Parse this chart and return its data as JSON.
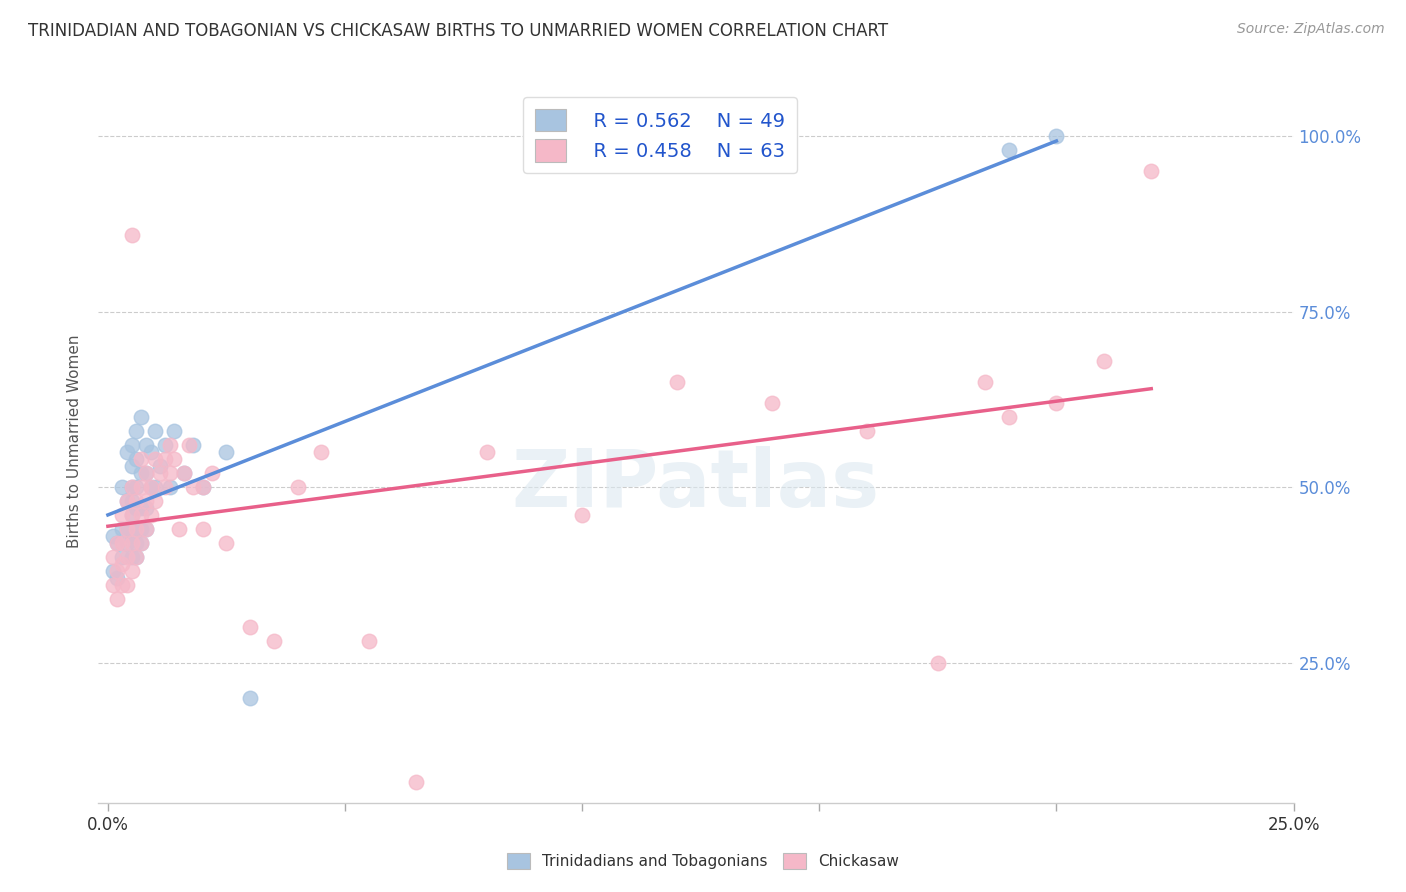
{
  "title": "TRINIDADIAN AND TOBAGONIAN VS CHICKASAW BIRTHS TO UNMARRIED WOMEN CORRELATION CHART",
  "source": "Source: ZipAtlas.com",
  "ylabel": "Births to Unmarried Women",
  "blue_R": "R = 0.562",
  "blue_N": "N = 49",
  "pink_R": "R = 0.458",
  "pink_N": "N = 63",
  "blue_color": "#a8c4e0",
  "pink_color": "#f5b8c8",
  "blue_line_color": "#5b8dd9",
  "pink_line_color": "#e8608a",
  "legend_blue_label": "Trinidadians and Tobagonians",
  "legend_pink_label": "Chickasaw",
  "watermark": "ZIPatlas",
  "blue_scatter_x": [
    0.001,
    0.001,
    0.002,
    0.002,
    0.003,
    0.003,
    0.003,
    0.004,
    0.004,
    0.004,
    0.004,
    0.005,
    0.005,
    0.005,
    0.005,
    0.005,
    0.005,
    0.005,
    0.006,
    0.006,
    0.006,
    0.006,
    0.006,
    0.006,
    0.006,
    0.007,
    0.007,
    0.007,
    0.007,
    0.007,
    0.008,
    0.008,
    0.008,
    0.008,
    0.009,
    0.009,
    0.01,
    0.01,
    0.011,
    0.012,
    0.013,
    0.014,
    0.016,
    0.018,
    0.02,
    0.025,
    0.03,
    0.19,
    0.2
  ],
  "blue_scatter_y": [
    0.38,
    0.43,
    0.37,
    0.42,
    0.4,
    0.44,
    0.5,
    0.42,
    0.44,
    0.48,
    0.55,
    0.4,
    0.43,
    0.46,
    0.48,
    0.5,
    0.53,
    0.56,
    0.4,
    0.42,
    0.44,
    0.47,
    0.5,
    0.54,
    0.58,
    0.42,
    0.44,
    0.47,
    0.52,
    0.6,
    0.44,
    0.47,
    0.52,
    0.56,
    0.5,
    0.55,
    0.5,
    0.58,
    0.53,
    0.56,
    0.5,
    0.58,
    0.52,
    0.56,
    0.5,
    0.55,
    0.2,
    0.98,
    1.0
  ],
  "pink_scatter_x": [
    0.001,
    0.001,
    0.002,
    0.002,
    0.002,
    0.003,
    0.003,
    0.003,
    0.003,
    0.004,
    0.004,
    0.004,
    0.004,
    0.005,
    0.005,
    0.005,
    0.005,
    0.005,
    0.006,
    0.006,
    0.006,
    0.007,
    0.007,
    0.007,
    0.007,
    0.008,
    0.008,
    0.008,
    0.009,
    0.009,
    0.01,
    0.01,
    0.011,
    0.012,
    0.012,
    0.013,
    0.013,
    0.014,
    0.015,
    0.016,
    0.017,
    0.018,
    0.02,
    0.02,
    0.022,
    0.025,
    0.03,
    0.035,
    0.04,
    0.045,
    0.055,
    0.065,
    0.08,
    0.1,
    0.12,
    0.14,
    0.16,
    0.175,
    0.185,
    0.19,
    0.2,
    0.21,
    0.22
  ],
  "pink_scatter_y": [
    0.36,
    0.4,
    0.34,
    0.38,
    0.42,
    0.36,
    0.39,
    0.42,
    0.46,
    0.36,
    0.4,
    0.44,
    0.48,
    0.38,
    0.42,
    0.46,
    0.5,
    0.86,
    0.4,
    0.44,
    0.48,
    0.42,
    0.46,
    0.5,
    0.54,
    0.44,
    0.48,
    0.52,
    0.46,
    0.5,
    0.48,
    0.54,
    0.52,
    0.5,
    0.54,
    0.52,
    0.56,
    0.54,
    0.44,
    0.52,
    0.56,
    0.5,
    0.44,
    0.5,
    0.52,
    0.42,
    0.3,
    0.28,
    0.5,
    0.55,
    0.28,
    0.08,
    0.55,
    0.46,
    0.65,
    0.62,
    0.58,
    0.25,
    0.65,
    0.6,
    0.62,
    0.68,
    0.95
  ],
  "xlim": [
    -0.002,
    0.225
  ],
  "ylim": [
    0.05,
    1.08
  ],
  "ytick_vals": [
    0.25,
    0.5,
    0.75,
    1.0
  ],
  "ytick_labels": [
    "25.0%",
    "50.0%",
    "75.0%",
    "100.0%"
  ],
  "xtick_vals": [
    0.0,
    0.05,
    0.1,
    0.15,
    0.2,
    0.25
  ],
  "xtick_labels_show": [
    "0.0%",
    "",
    "",
    "",
    "",
    "25.0%"
  ],
  "background_color": "#ffffff",
  "grid_color": "#cccccc",
  "title_fontsize": 12,
  "source_fontsize": 10,
  "axis_label_fontsize": 11,
  "tick_fontsize": 12,
  "legend_fontsize": 14
}
